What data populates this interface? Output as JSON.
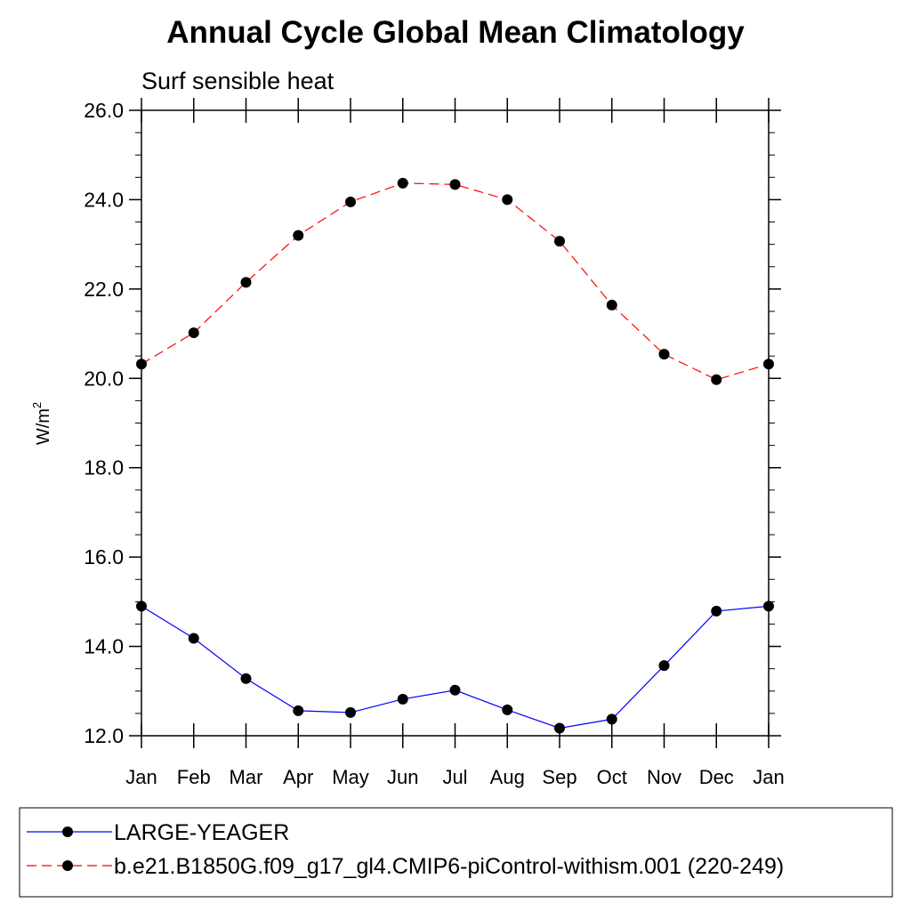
{
  "chart_data": {
    "type": "line",
    "title": "Annual Cycle Global Mean Climatology",
    "subtitle": "Surf sensible heat",
    "ylabel_main": "W/m",
    "ylabel_sup": "2",
    "xlabel": "",
    "categories": [
      "Jan",
      "Feb",
      "Mar",
      "Apr",
      "May",
      "Jun",
      "Jul",
      "Aug",
      "Sep",
      "Oct",
      "Nov",
      "Dec",
      "Jan"
    ],
    "ylim": [
      12.0,
      26.0
    ],
    "yticks": [
      "12.0",
      "14.0",
      "16.0",
      "18.0",
      "20.0",
      "22.0",
      "24.0",
      "26.0"
    ],
    "grid": false,
    "legend_position": "bottom",
    "series": [
      {
        "name": "LARGE-YEAGER",
        "color": "#0000ff",
        "line_style": "solid",
        "marker": "filled-circle",
        "values": [
          14.9,
          14.18,
          13.28,
          12.56,
          12.52,
          12.82,
          13.02,
          12.58,
          12.17,
          12.37,
          13.57,
          14.79,
          14.9
        ]
      },
      {
        "name": "b.e21.B1850G.f09_g17_gl4.CMIP6-piControl-withism.001 (220-249)",
        "color": "#ff0000",
        "line_style": "dashed",
        "marker": "filled-circle",
        "values": [
          20.32,
          21.02,
          22.15,
          23.2,
          23.95,
          24.37,
          24.34,
          24.0,
          23.07,
          21.64,
          20.54,
          19.97,
          20.32
        ]
      }
    ]
  }
}
